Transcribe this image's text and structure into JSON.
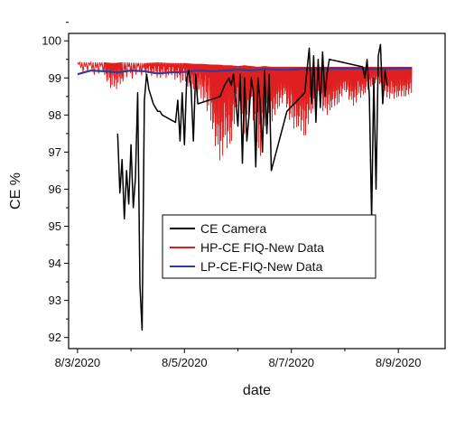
{
  "chart_data": {
    "type": "line",
    "title": "",
    "xlabel": "date",
    "ylabel": "CE %",
    "x_axis": {
      "type": "date",
      "range": [
        "2020-08-02T20:00",
        "2020-08-09T21:00"
      ],
      "ticks": [
        "8/3/2020",
        "8/5/2020",
        "8/7/2020",
        "8/9/2020"
      ]
    },
    "ylim": [
      91.7,
      100.2
    ],
    "yticks": [
      92,
      93,
      94,
      95,
      96,
      97,
      98,
      99,
      100
    ],
    "grid": false,
    "legend_position": "center",
    "series": [
      {
        "name": "CE Camera",
        "color": "#000000",
        "x": [
          "2020-08-03T18:00",
          "2020-08-03T19:00",
          "2020-08-03T20:00",
          "2020-08-03T21:00",
          "2020-08-03T22:00",
          "2020-08-03T23:00",
          "2020-08-04T00:00",
          "2020-08-04T01:00",
          "2020-08-04T02:00",
          "2020-08-04T03:00",
          "2020-08-04T04:00",
          "2020-08-04T05:00",
          "2020-08-04T06:00",
          "2020-08-04T07:00",
          "2020-08-04T08:00",
          "2020-08-04T09:00",
          "2020-08-04T10:00",
          "2020-08-04T11:00",
          "2020-08-04T12:00",
          "2020-08-04T13:00",
          "2020-08-04T14:00",
          "2020-08-04T20:00",
          "2020-08-04T21:00",
          "2020-08-04T22:00",
          "2020-08-04T23:00",
          "2020-08-05T00:00",
          "2020-08-05T01:00",
          "2020-08-05T02:00",
          "2020-08-05T03:00",
          "2020-08-05T04:00",
          "2020-08-05T05:00",
          "2020-08-05T06:00",
          "2020-08-05T16:00",
          "2020-08-05T18:00",
          "2020-08-05T20:00",
          "2020-08-05T21:00",
          "2020-08-05T22:00",
          "2020-08-05T23:00",
          "2020-08-06T00:00",
          "2020-08-06T01:00",
          "2020-08-06T02:00",
          "2020-08-06T03:00",
          "2020-08-06T04:00",
          "2020-08-06T05:00",
          "2020-08-06T06:00",
          "2020-08-06T07:00",
          "2020-08-06T08:00",
          "2020-08-06T09:00",
          "2020-08-06T10:00",
          "2020-08-06T11:00",
          "2020-08-06T12:00",
          "2020-08-06T13:00",
          "2020-08-06T14:00",
          "2020-08-06T15:00",
          "2020-08-06T22:00",
          "2020-08-07T06:00",
          "2020-08-07T07:00",
          "2020-08-07T08:00",
          "2020-08-07T09:00",
          "2020-08-07T10:00",
          "2020-08-07T11:00",
          "2020-08-07T12:00",
          "2020-08-07T13:00",
          "2020-08-07T14:00",
          "2020-08-07T15:00",
          "2020-08-07T16:00",
          "2020-08-07T17:00",
          "2020-08-08T08:00",
          "2020-08-08T09:00",
          "2020-08-08T10:00",
          "2020-08-08T11:00",
          "2020-08-08T12:00",
          "2020-08-08T13:00",
          "2020-08-08T14:00",
          "2020-08-08T15:00",
          "2020-08-08T16:00",
          "2020-08-08T17:00",
          "2020-08-08T18:00",
          "2020-08-08T19:00"
        ],
        "y": [
          97.5,
          95.9,
          96.8,
          95.2,
          96.5,
          95.6,
          97.2,
          95.5,
          96.3,
          98.6,
          93.4,
          92.2,
          98.4,
          99.1,
          98.7,
          98.5,
          98.3,
          98.2,
          98.1,
          98.1,
          98.0,
          97.8,
          98.4,
          97.3,
          98.6,
          97.2,
          99.0,
          99.2,
          98.7,
          97.3,
          99.1,
          98.3,
          98.5,
          98.8,
          99.0,
          98.8,
          99.1,
          98.4,
          97.7,
          99.1,
          96.7,
          99.0,
          97.3,
          98.0,
          99.0,
          98.6,
          96.6,
          99.0,
          98.3,
          97.0,
          99.2,
          97.5,
          99.1,
          96.5,
          98.1,
          98.6,
          99.2,
          99.8,
          98.3,
          99.6,
          97.8,
          99.5,
          98.2,
          99.7,
          98.5,
          99.1,
          99.5,
          99.3,
          99.0,
          99.5,
          98.5,
          95.2,
          99.0,
          96.0,
          99.6,
          99.9,
          98.3,
          99.2,
          98.8
        ]
      },
      {
        "name": "HP-CE FIQ-New Data",
        "color": "#e02020",
        "x": [
          "2020-08-03T00:00",
          "2020-08-03T12:00",
          "2020-08-03T16:00",
          "2020-08-03T20:00",
          "2020-08-04T06:00",
          "2020-08-04T12:00",
          "2020-08-04T18:00",
          "2020-08-05T00:00",
          "2020-08-05T04:00",
          "2020-08-05T08:00",
          "2020-08-05T12:00",
          "2020-08-05T15:00",
          "2020-08-05T18:00",
          "2020-08-05T21:00",
          "2020-08-06T00:00",
          "2020-08-06T03:00",
          "2020-08-06T06:00",
          "2020-08-06T09:00",
          "2020-08-06T12:00",
          "2020-08-06T15:00",
          "2020-08-06T18:00",
          "2020-08-06T21:00",
          "2020-08-07T00:00",
          "2020-08-07T03:00",
          "2020-08-07T06:00",
          "2020-08-07T09:00",
          "2020-08-07T12:00",
          "2020-08-07T15:00",
          "2020-08-07T18:00",
          "2020-08-07T21:00",
          "2020-08-08T00:00",
          "2020-08-08T03:00",
          "2020-08-08T06:00",
          "2020-08-08T09:00",
          "2020-08-08T12:00",
          "2020-08-08T15:00",
          "2020-08-08T18:00",
          "2020-08-08T21:00",
          "2020-08-09T00:00",
          "2020-08-09T03:00",
          "2020-08-09T06:00"
        ],
        "y_high": [
          99.42,
          99.42,
          99.4,
          99.42,
          99.4,
          99.42,
          99.4,
          99.4,
          99.38,
          99.38,
          99.36,
          99.36,
          99.34,
          99.34,
          99.32,
          99.34,
          99.32,
          99.3,
          99.32,
          99.3,
          99.3,
          99.3,
          99.3,
          99.3,
          99.3,
          99.3,
          99.3,
          99.3,
          99.3,
          99.3,
          99.3,
          99.3,
          99.3,
          99.3,
          99.3,
          99.3,
          99.3,
          99.3,
          99.3,
          99.3,
          99.3
        ],
        "y_low": [
          99.2,
          99.0,
          98.6,
          98.9,
          99.1,
          99.0,
          99.0,
          98.8,
          98.7,
          98.4,
          97.8,
          96.7,
          97.0,
          97.3,
          98.4,
          97.4,
          98.3,
          96.5,
          97.7,
          97.8,
          98.2,
          98.4,
          97.6,
          97.7,
          97.4,
          98.1,
          98.5,
          97.9,
          98.2,
          98.3,
          98.7,
          98.2,
          98.4,
          98.6,
          98.8,
          98.9,
          98.5,
          98.4,
          98.5,
          98.5,
          98.6
        ]
      },
      {
        "name": "LP-CE-FIQ-New Data",
        "color": "#2b3fa0",
        "x": [
          "2020-08-03T00:00",
          "2020-08-03T06:00",
          "2020-08-03T12:00",
          "2020-08-03T18:00",
          "2020-08-04T00:00",
          "2020-08-04T06:00",
          "2020-08-04T12:00",
          "2020-08-04T18:00",
          "2020-08-05T00:00",
          "2020-08-05T06:00",
          "2020-08-05T12:00",
          "2020-08-05T18:00",
          "2020-08-06T00:00",
          "2020-08-06T06:00",
          "2020-08-06T12:00",
          "2020-08-06T18:00",
          "2020-08-07T00:00",
          "2020-08-07T06:00",
          "2020-08-07T12:00",
          "2020-08-07T18:00",
          "2020-08-08T00:00",
          "2020-08-08T06:00",
          "2020-08-08T12:00",
          "2020-08-08T18:00",
          "2020-08-09T00:00",
          "2020-08-09T06:00"
        ],
        "y": [
          99.1,
          99.2,
          99.18,
          99.15,
          99.2,
          99.18,
          99.12,
          99.15,
          99.16,
          99.2,
          99.18,
          99.2,
          99.22,
          99.2,
          99.24,
          99.22,
          99.22,
          99.25,
          99.24,
          99.26,
          99.25,
          99.26,
          99.24,
          99.25,
          99.26,
          99.26
        ]
      }
    ]
  }
}
